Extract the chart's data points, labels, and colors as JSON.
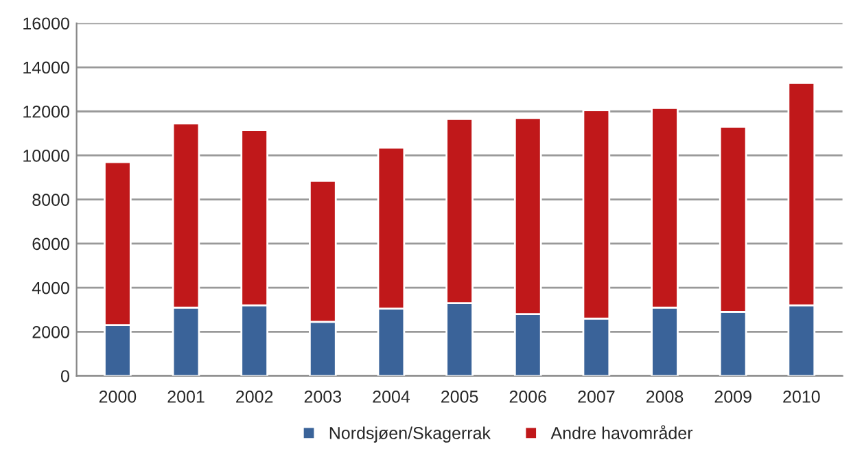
{
  "chart_data": {
    "type": "bar",
    "stacked": true,
    "categories": [
      "2000",
      "2001",
      "2002",
      "2003",
      "2004",
      "2005",
      "2006",
      "2007",
      "2008",
      "2009",
      "2010"
    ],
    "series": [
      {
        "name": "Nordsjøen/Skagerrak",
        "color": "#3a6399",
        "values": [
          2300,
          3100,
          3200,
          2450,
          3050,
          3300,
          2800,
          2600,
          3100,
          2900,
          3200
        ]
      },
      {
        "name": "Andre havområder",
        "color": "#c0181a",
        "values": [
          7400,
          8350,
          7950,
          6400,
          7300,
          8350,
          8900,
          9450,
          9050,
          8400,
          10100
        ]
      }
    ],
    "ylim": [
      0,
      16000
    ],
    "yticks": [
      0,
      2000,
      4000,
      6000,
      8000,
      10000,
      12000,
      14000,
      16000
    ],
    "grid": "y",
    "legend": "bottom"
  }
}
